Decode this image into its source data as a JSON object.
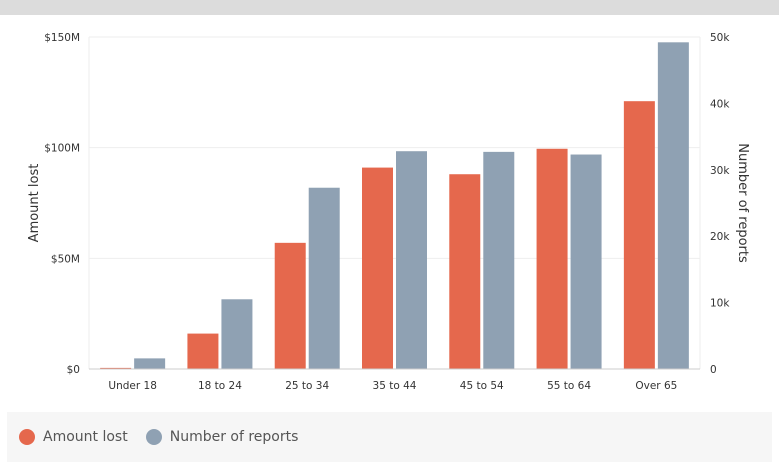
{
  "colors": {
    "amount_lost": "#e5684d",
    "number_of_reports": "#8fa1b3"
  },
  "legend": {
    "items": [
      "Amount lost",
      "Number of reports"
    ]
  },
  "chart_data": {
    "type": "bar",
    "categories": [
      "Under 18",
      "18 to 24",
      "25 to 34",
      "35 to 44",
      "45 to 54",
      "55 to 64",
      "Over 65"
    ],
    "series": [
      {
        "name": "Amount lost",
        "axis": "left",
        "values": [
          0.5,
          16,
          57,
          91,
          88,
          99.5,
          121
        ]
      },
      {
        "name": "Number of reports",
        "axis": "right",
        "values": [
          1600,
          10500,
          27300,
          32800,
          32700,
          32300,
          49200
        ]
      }
    ],
    "ylabel": "Amount lost",
    "ylabel_right": "Number of reports",
    "ylim": [
      0,
      150
    ],
    "ylim_right": [
      0,
      50000
    ],
    "yticks": [
      "$0",
      "$50M",
      "$100M",
      "$150M"
    ],
    "yticks_right": [
      "0",
      "10k",
      "20k",
      "30k",
      "40k",
      "50k"
    ],
    "grid": true,
    "legend_position": "bottom-left"
  }
}
